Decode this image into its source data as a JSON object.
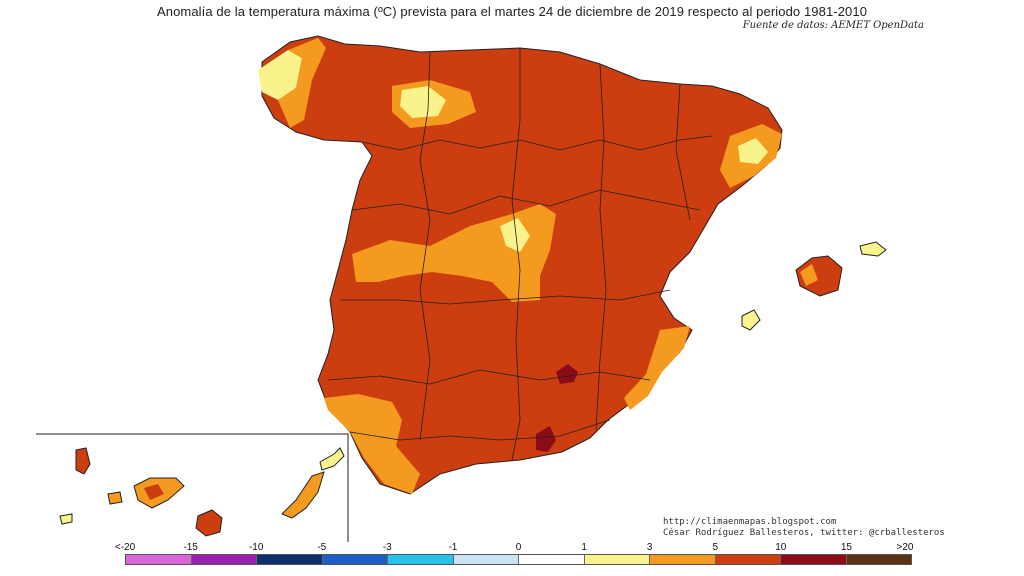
{
  "map": {
    "title": "Anomalía de la temperatura máxima (ºC) prevista para el martes 24 de diciembre de 2019 respecto al periodo 1981-2010",
    "source": "Fuente de datos: AEMET OpenData",
    "credits": {
      "blog": "http://climaenmapas.blogspot.com",
      "author": "César Rodríguez Ballesteros, twitter: @crballesteros"
    },
    "colors": {
      "dominant": "#cc3d0f",
      "orange": "#f39a1f",
      "yellow": "#faf28a",
      "dark_red": "#8b0c18"
    }
  },
  "legend": {
    "ticks": [
      "<-20",
      "-15",
      "-10",
      "-5",
      "-3",
      "-1",
      "0",
      "1",
      "3",
      "5",
      "10",
      "15",
      ">20"
    ],
    "colors": [
      "#d966d9",
      "#9a1fb3",
      "#0d2f6b",
      "#1b5ec9",
      "#26c2e8",
      "#c9e3f5",
      "#ffffff",
      "#faf28a",
      "#f39a1f",
      "#cc3d0f",
      "#8b0c18",
      "#5c3213"
    ]
  }
}
